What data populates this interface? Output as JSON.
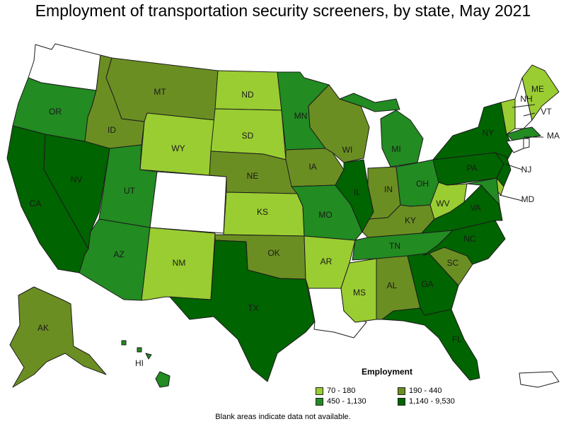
{
  "title": "Employment of transportation security screeners, by state, May 2021",
  "colors": {
    "c1": "#9acd32",
    "c2": "#6b8e23",
    "c3": "#228b22",
    "c4": "#006400",
    "na": "#ffffff"
  },
  "legend": {
    "title": "Employment",
    "items": [
      {
        "label": "70 - 180",
        "color": "#9acd32"
      },
      {
        "label": "190 - 440",
        "color": "#6b8e23"
      },
      {
        "label": "450 - 1,130",
        "color": "#228b22"
      },
      {
        "label": "1,140 - 9,530",
        "color": "#006400"
      }
    ]
  },
  "note": "Blank areas indicate data not available.",
  "states": [
    {
      "abbr": "WA",
      "cat": "na",
      "label": ""
    },
    {
      "abbr": "OR",
      "cat": "c3",
      "label": "OR"
    },
    {
      "abbr": "CA",
      "cat": "c4",
      "label": "CA"
    },
    {
      "abbr": "NV",
      "cat": "c4",
      "label": "NV"
    },
    {
      "abbr": "ID",
      "cat": "c2",
      "label": "ID"
    },
    {
      "abbr": "MT",
      "cat": "c2",
      "label": "MT"
    },
    {
      "abbr": "WY",
      "cat": "c1",
      "label": "WY"
    },
    {
      "abbr": "UT",
      "cat": "c3",
      "label": "UT"
    },
    {
      "abbr": "AZ",
      "cat": "c3",
      "label": "AZ"
    },
    {
      "abbr": "CO",
      "cat": "na",
      "label": ""
    },
    {
      "abbr": "NM",
      "cat": "c1",
      "label": "NM"
    },
    {
      "abbr": "ND",
      "cat": "c1",
      "label": "ND"
    },
    {
      "abbr": "SD",
      "cat": "c1",
      "label": "SD"
    },
    {
      "abbr": "NE",
      "cat": "c2",
      "label": "NE"
    },
    {
      "abbr": "KS",
      "cat": "c1",
      "label": "KS"
    },
    {
      "abbr": "OK",
      "cat": "c2",
      "label": "OK"
    },
    {
      "abbr": "TX",
      "cat": "c4",
      "label": "TX"
    },
    {
      "abbr": "MN",
      "cat": "c3",
      "label": "MN"
    },
    {
      "abbr": "IA",
      "cat": "c2",
      "label": "IA"
    },
    {
      "abbr": "MO",
      "cat": "c3",
      "label": "MO"
    },
    {
      "abbr": "AR",
      "cat": "c1",
      "label": "AR"
    },
    {
      "abbr": "LA",
      "cat": "na",
      "label": ""
    },
    {
      "abbr": "WI",
      "cat": "c2",
      "label": "WI"
    },
    {
      "abbr": "IL",
      "cat": "c4",
      "label": "IL"
    },
    {
      "abbr": "MI",
      "cat": "c3",
      "label": "MI"
    },
    {
      "abbr": "IN",
      "cat": "c2",
      "label": "IN"
    },
    {
      "abbr": "OH",
      "cat": "c3",
      "label": "OH"
    },
    {
      "abbr": "KY",
      "cat": "c2",
      "label": "KY"
    },
    {
      "abbr": "TN",
      "cat": "c3",
      "label": "TN"
    },
    {
      "abbr": "MS",
      "cat": "c1",
      "label": "MS"
    },
    {
      "abbr": "AL",
      "cat": "c2",
      "label": "AL"
    },
    {
      "abbr": "GA",
      "cat": "c4",
      "label": "GA"
    },
    {
      "abbr": "FL",
      "cat": "c4",
      "label": "FL"
    },
    {
      "abbr": "SC",
      "cat": "c2",
      "label": "SC"
    },
    {
      "abbr": "NC",
      "cat": "c4",
      "label": "NC"
    },
    {
      "abbr": "VA",
      "cat": "c4",
      "label": "VA"
    },
    {
      "abbr": "WV",
      "cat": "c1",
      "label": "WV"
    },
    {
      "abbr": "PA",
      "cat": "c4",
      "label": "PA"
    },
    {
      "abbr": "NY",
      "cat": "c4",
      "label": "NY"
    },
    {
      "abbr": "NJ",
      "cat": "c4",
      "label": "NJ"
    },
    {
      "abbr": "MD",
      "cat": "c3",
      "label": "MD"
    },
    {
      "abbr": "DE",
      "cat": "c1",
      "label": ""
    },
    {
      "abbr": "VT",
      "cat": "c1",
      "label": "VT"
    },
    {
      "abbr": "NH",
      "cat": "na",
      "label": "NH"
    },
    {
      "abbr": "ME",
      "cat": "c1",
      "label": "ME"
    },
    {
      "abbr": "MA",
      "cat": "c3",
      "label": "MA"
    },
    {
      "abbr": "CT",
      "cat": "na",
      "label": ""
    },
    {
      "abbr": "RI",
      "cat": "na",
      "label": ""
    },
    {
      "abbr": "AK",
      "cat": "c2",
      "label": "AK"
    },
    {
      "abbr": "HI",
      "cat": "c3",
      "label": "HI"
    },
    {
      "abbr": "PR",
      "cat": "na",
      "label": ""
    }
  ]
}
